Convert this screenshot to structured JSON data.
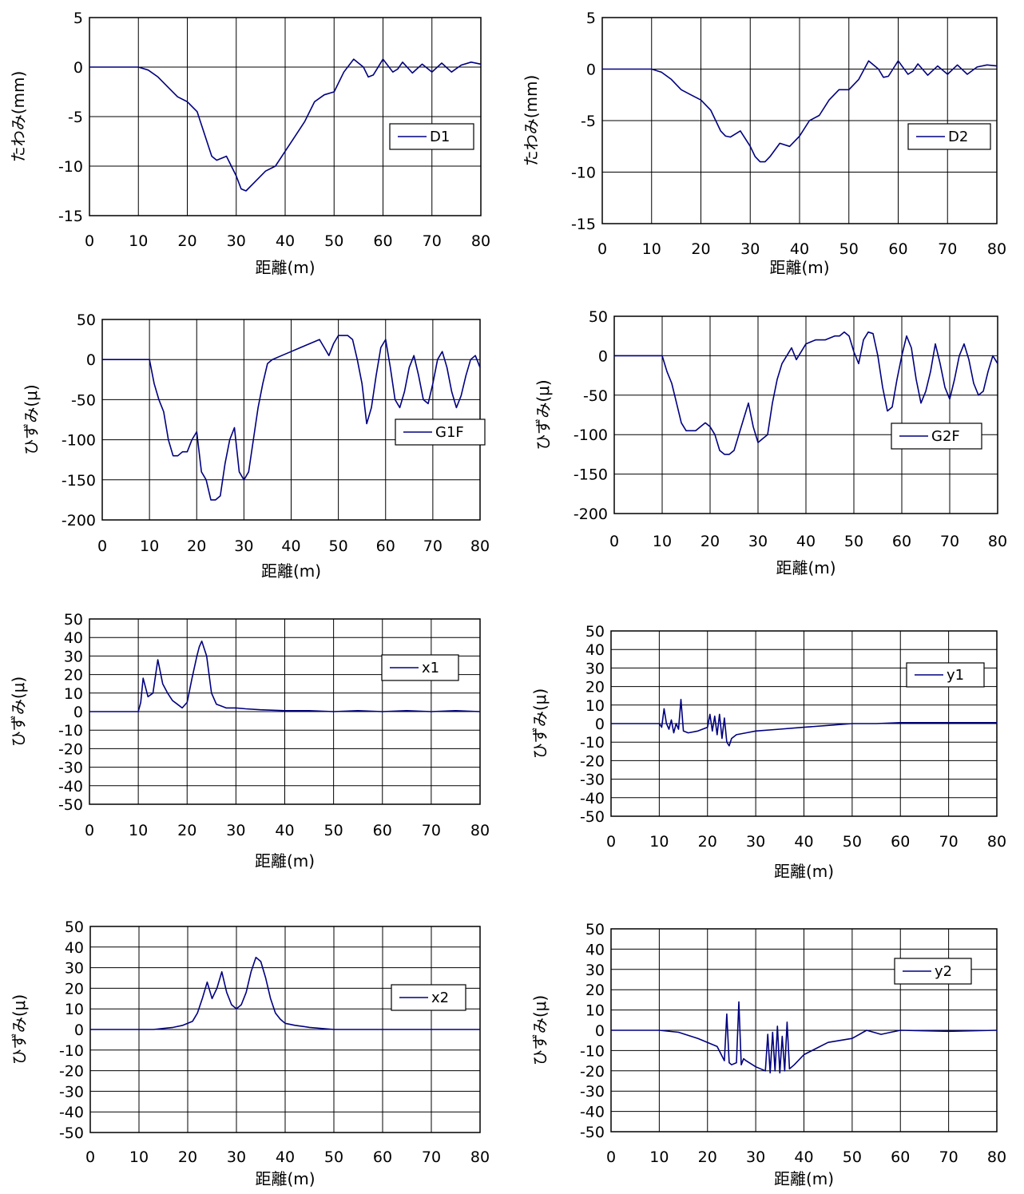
{
  "colors": {
    "series": "#000080",
    "grid": "#000000",
    "background": "#ffffff"
  },
  "chart_data": [
    {
      "type": "line",
      "xlabel": "距離(m)",
      "ylabel": "たわみ(mm)",
      "xlim": [
        0,
        80
      ],
      "ylim": [
        -15,
        5
      ],
      "xticks": [
        0,
        10,
        20,
        30,
        40,
        50,
        60,
        70,
        80
      ],
      "yticks": [
        5,
        0,
        -5,
        -10,
        -15
      ],
      "grid": true,
      "legend": "right",
      "series": [
        {
          "name": "D1",
          "x": [
            0,
            10,
            12,
            14,
            16,
            18,
            20,
            22,
            24,
            25,
            26,
            28,
            30,
            31,
            32,
            34,
            36,
            38,
            40,
            42,
            44,
            46,
            48,
            50,
            52,
            54,
            56,
            57,
            58,
            60,
            62,
            63,
            64,
            66,
            68,
            70,
            72,
            74,
            76,
            78,
            80
          ],
          "values": [
            0,
            0,
            -0.3,
            -1.0,
            -2.0,
            -3.0,
            -3.5,
            -4.5,
            -7.5,
            -9.0,
            -9.4,
            -9.0,
            -11.0,
            -12.3,
            -12.5,
            -11.5,
            -10.5,
            -10.0,
            -8.5,
            -7.0,
            -5.5,
            -3.5,
            -2.8,
            -2.5,
            -0.5,
            0.8,
            0.0,
            -1.0,
            -0.8,
            0.8,
            -0.5,
            -0.2,
            0.5,
            -0.6,
            0.3,
            -0.5,
            0.4,
            -0.5,
            0.2,
            0.5,
            0.3
          ]
        }
      ]
    },
    {
      "type": "line",
      "xlabel": "距離(m)",
      "ylabel": "たわみ(mm)",
      "xlim": [
        0,
        80
      ],
      "ylim": [
        -15,
        5
      ],
      "xticks": [
        0,
        10,
        20,
        30,
        40,
        50,
        60,
        70,
        80
      ],
      "yticks": [
        5,
        0,
        -5,
        -10,
        -15
      ],
      "grid": true,
      "legend": "right",
      "series": [
        {
          "name": "D2",
          "x": [
            0,
            10,
            12,
            14,
            16,
            18,
            20,
            22,
            24,
            25,
            26,
            28,
            30,
            31,
            32,
            33,
            34,
            36,
            38,
            40,
            42,
            44,
            46,
            48,
            50,
            52,
            54,
            56,
            57,
            58,
            60,
            62,
            63,
            64,
            66,
            68,
            70,
            72,
            74,
            76,
            78,
            80
          ],
          "values": [
            0,
            0,
            -0.3,
            -1.0,
            -2.0,
            -2.5,
            -3.0,
            -4.0,
            -6.0,
            -6.5,
            -6.6,
            -6.0,
            -7.5,
            -8.5,
            -9.0,
            -9.0,
            -8.5,
            -7.2,
            -7.5,
            -6.5,
            -5.0,
            -4.5,
            -3.0,
            -2.0,
            -2.0,
            -1.0,
            0.8,
            0.0,
            -0.8,
            -0.7,
            0.8,
            -0.5,
            -0.2,
            0.5,
            -0.6,
            0.3,
            -0.5,
            0.4,
            -0.5,
            0.2,
            0.4,
            0.3
          ]
        }
      ]
    },
    {
      "type": "line",
      "xlabel": "距離(m)",
      "ylabel": "ひずみ(μ)",
      "xlim": [
        0,
        80
      ],
      "ylim": [
        -200,
        50
      ],
      "xticks": [
        0,
        10,
        20,
        30,
        40,
        50,
        60,
        70,
        80
      ],
      "yticks": [
        50,
        0,
        -50,
        -100,
        -150,
        -200
      ],
      "grid": true,
      "legend": "right",
      "series": [
        {
          "name": "G1F",
          "x": [
            0,
            10,
            11,
            12,
            13,
            14,
            15,
            16,
            17,
            18,
            19,
            20,
            21,
            22,
            23,
            24,
            25,
            26,
            27,
            28,
            29,
            30,
            31,
            32,
            33,
            34,
            35,
            36,
            38,
            40,
            42,
            44,
            46,
            47,
            48,
            49,
            50,
            52,
            53,
            54,
            55,
            56,
            57,
            58,
            59,
            60,
            61,
            62,
            63,
            64,
            65,
            66,
            67,
            68,
            69,
            70,
            71,
            72,
            73,
            74,
            75,
            76,
            77,
            78,
            79,
            80
          ],
          "values": [
            0,
            0,
            -30,
            -50,
            -65,
            -100,
            -120,
            -120,
            -115,
            -115,
            -100,
            -90,
            -140,
            -150,
            -175,
            -175,
            -170,
            -130,
            -100,
            -85,
            -140,
            -150,
            -140,
            -100,
            -60,
            -30,
            -5,
            0,
            5,
            10,
            15,
            20,
            25,
            15,
            5,
            20,
            30,
            30,
            25,
            0,
            -30,
            -80,
            -60,
            -20,
            15,
            25,
            -10,
            -50,
            -60,
            -40,
            -10,
            5,
            -20,
            -50,
            -55,
            -30,
            0,
            10,
            -10,
            -40,
            -60,
            -45,
            -20,
            0,
            5,
            -10
          ]
        }
      ]
    },
    {
      "type": "line",
      "xlabel": "距離(m)",
      "ylabel": "ひずみ(μ)",
      "xlim": [
        0,
        80
      ],
      "ylim": [
        -200,
        50
      ],
      "xticks": [
        0,
        10,
        20,
        30,
        40,
        50,
        60,
        70,
        80
      ],
      "yticks": [
        50,
        0,
        -50,
        -100,
        -150,
        -200
      ],
      "grid": true,
      "legend": "right",
      "series": [
        {
          "name": "G2F",
          "x": [
            0,
            10,
            11,
            12,
            13,
            14,
            15,
            16,
            17,
            18,
            19,
            20,
            21,
            22,
            23,
            24,
            25,
            26,
            27,
            28,
            29,
            30,
            31,
            32,
            33,
            34,
            35,
            36,
            37,
            38,
            40,
            42,
            44,
            46,
            47,
            48,
            49,
            50,
            51,
            52,
            53,
            54,
            55,
            56,
            57,
            58,
            59,
            60,
            61,
            62,
            63,
            64,
            65,
            66,
            67,
            68,
            69,
            70,
            71,
            72,
            73,
            74,
            75,
            76,
            77,
            78,
            79,
            80
          ],
          "values": [
            0,
            0,
            -20,
            -35,
            -60,
            -85,
            -95,
            -95,
            -95,
            -90,
            -85,
            -90,
            -100,
            -120,
            -125,
            -125,
            -120,
            -100,
            -80,
            -60,
            -90,
            -110,
            -105,
            -100,
            -60,
            -30,
            -10,
            0,
            10,
            -5,
            15,
            20,
            20,
            25,
            25,
            30,
            25,
            5,
            -10,
            20,
            30,
            28,
            0,
            -40,
            -70,
            -65,
            -30,
            0,
            25,
            10,
            -30,
            -60,
            -45,
            -20,
            15,
            -10,
            -40,
            -55,
            -30,
            0,
            15,
            -5,
            -35,
            -50,
            -45,
            -20,
            0,
            -10
          ]
        }
      ]
    },
    {
      "type": "line",
      "xlabel": "距離(m)",
      "ylabel": "ひずみ(μ)",
      "xlim": [
        0,
        80
      ],
      "ylim": [
        -50,
        50
      ],
      "xticks": [
        0,
        10,
        20,
        30,
        40,
        50,
        60,
        70,
        80
      ],
      "yticks": [
        50,
        40,
        30,
        20,
        10,
        0,
        -10,
        -20,
        -30,
        -40,
        -50
      ],
      "grid": true,
      "legend": "right",
      "series": [
        {
          "name": "x1",
          "x": [
            0,
            10,
            10.5,
            11,
            12,
            13,
            14,
            15,
            16,
            17,
            18,
            19,
            20,
            21,
            22,
            22.5,
            23,
            24,
            25,
            26,
            27,
            28,
            30,
            32,
            35,
            40,
            45,
            50,
            55,
            60,
            65,
            70,
            75,
            80
          ],
          "values": [
            0,
            0,
            5,
            18,
            8,
            10,
            28,
            15,
            10,
            6,
            4,
            2,
            5,
            18,
            30,
            35,
            38,
            30,
            10,
            4,
            3,
            2,
            2,
            1.5,
            1,
            0.5,
            0.5,
            0,
            0.5,
            0,
            0.5,
            0,
            0.5,
            0
          ]
        }
      ]
    },
    {
      "type": "line",
      "xlabel": "距離(m)",
      "ylabel": "ひずみ(μ)",
      "xlim": [
        0,
        80
      ],
      "ylim": [
        -50,
        50
      ],
      "xticks": [
        0,
        10,
        20,
        30,
        40,
        50,
        60,
        70,
        80
      ],
      "yticks": [
        50,
        40,
        30,
        20,
        10,
        0,
        -10,
        -20,
        -30,
        -40,
        -50
      ],
      "grid": true,
      "legend": "right",
      "series": [
        {
          "name": "y1",
          "x": [
            0,
            10,
            10.5,
            11,
            11.5,
            12,
            12.5,
            13,
            13.5,
            14,
            14.5,
            15,
            16,
            18,
            20,
            20.5,
            21,
            21.5,
            22,
            22.5,
            23,
            23.5,
            24,
            24.5,
            25,
            26,
            28,
            30,
            35,
            40,
            45,
            50,
            55,
            60,
            70,
            80
          ],
          "values": [
            0,
            0,
            -2,
            8,
            0,
            -3,
            2,
            -5,
            0,
            -3,
            13,
            -4,
            -5,
            -4,
            -2,
            5,
            -4,
            4,
            -6,
            5,
            -8,
            3,
            -10,
            -12,
            -8,
            -6,
            -5,
            -4,
            -3,
            -2,
            -1,
            0,
            0,
            0.5,
            0.5,
            0.5
          ]
        }
      ]
    },
    {
      "type": "line",
      "xlabel": "距離(m)",
      "ylabel": "ひずみ(μ)",
      "xlim": [
        0,
        80
      ],
      "ylim": [
        -50,
        50
      ],
      "xticks": [
        0,
        10,
        20,
        30,
        40,
        50,
        60,
        70,
        80
      ],
      "yticks": [
        50,
        40,
        30,
        20,
        10,
        0,
        -10,
        -20,
        -30,
        -40,
        -50
      ],
      "grid": true,
      "legend": "right",
      "series": [
        {
          "name": "x2",
          "x": [
            0,
            13,
            15,
            17,
            19,
            21,
            22,
            23,
            24,
            25,
            26,
            27,
            28,
            29,
            30,
            31,
            32,
            33,
            34,
            35,
            36,
            37,
            38,
            39,
            40,
            42,
            45,
            50,
            55,
            60,
            65,
            70,
            80
          ],
          "values": [
            0,
            0,
            0.5,
            1,
            2,
            4,
            8,
            15,
            23,
            15,
            20,
            28,
            18,
            12,
            10,
            12,
            18,
            28,
            35,
            33,
            25,
            15,
            8,
            5,
            3,
            2,
            1,
            0,
            0,
            0,
            0,
            0,
            0
          ]
        }
      ]
    },
    {
      "type": "line",
      "xlabel": "距離(m)",
      "ylabel": "ひずみ(μ)",
      "xlim": [
        0,
        80
      ],
      "ylim": [
        -50,
        50
      ],
      "xticks": [
        0,
        10,
        20,
        30,
        40,
        50,
        60,
        70,
        80
      ],
      "yticks": [
        50,
        40,
        30,
        20,
        10,
        0,
        -10,
        -20,
        -30,
        -40,
        -50
      ],
      "grid": true,
      "legend": "right",
      "series": [
        {
          "name": "y2",
          "x": [
            0,
            10,
            14,
            18,
            22,
            23.5,
            24,
            24.5,
            25,
            26,
            26.5,
            27,
            27.5,
            28,
            30,
            32,
            32.5,
            33,
            33.5,
            34,
            34.5,
            35,
            35.5,
            36,
            36.5,
            37,
            38,
            40,
            45,
            50,
            53,
            56,
            58,
            60,
            70,
            80
          ],
          "values": [
            0,
            0,
            -1,
            -4,
            -8,
            -15,
            8,
            -16,
            -17,
            -16,
            14,
            -17,
            -14,
            -15,
            -18,
            -20,
            -2,
            -21,
            -1,
            -20,
            2,
            -21,
            -3,
            -20,
            4,
            -19,
            -17,
            -12,
            -6,
            -4,
            0,
            -2,
            -1,
            0,
            -0.5,
            0
          ]
        }
      ]
    }
  ]
}
